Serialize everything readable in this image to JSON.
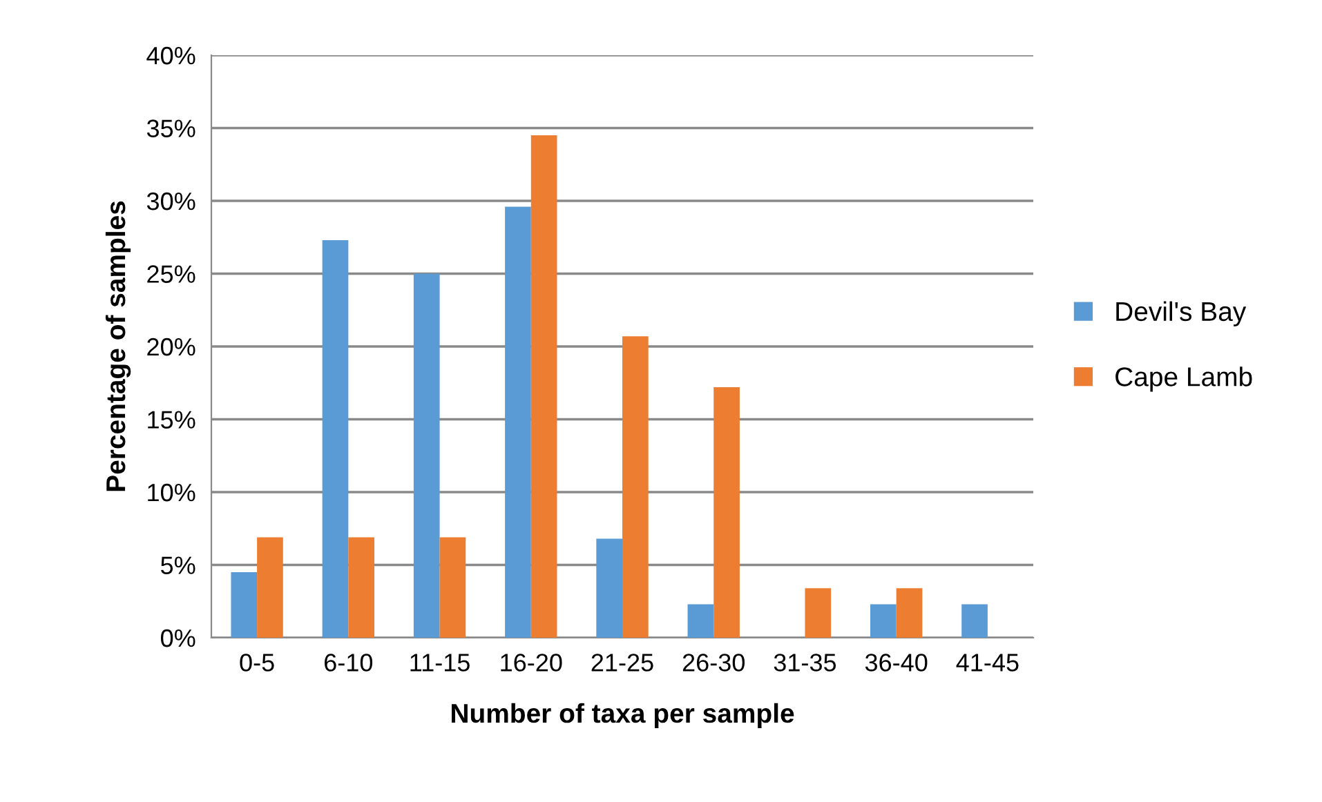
{
  "chart_data": {
    "type": "bar",
    "xlabel": "Number of taxa per sample",
    "ylabel": "Percentage of samples",
    "categories": [
      "0-5",
      "6-10",
      "11-15",
      "16-20",
      "21-25",
      "26-30",
      "31-35",
      "36-40",
      "41-45"
    ],
    "series": [
      {
        "name": "Devil's Bay",
        "color": "#5b9bd5",
        "values": [
          4.5,
          27.3,
          25.0,
          29.6,
          6.8,
          2.3,
          0,
          2.3,
          2.3
        ]
      },
      {
        "name": "Cape Lamb",
        "color": "#ed7d31",
        "values": [
          6.9,
          6.9,
          6.9,
          34.5,
          20.7,
          17.2,
          3.4,
          3.4,
          0
        ]
      }
    ],
    "ylim": [
      0,
      40
    ],
    "yticks": [
      {
        "value": 0,
        "label": "0%"
      },
      {
        "value": 5,
        "label": "5%"
      },
      {
        "value": 10,
        "label": "10%"
      },
      {
        "value": 15,
        "label": "15%"
      },
      {
        "value": 20,
        "label": "20%"
      },
      {
        "value": 25,
        "label": "25%"
      },
      {
        "value": 30,
        "label": "30%"
      },
      {
        "value": 35,
        "label": "35%"
      },
      {
        "value": 40,
        "label": "40%"
      }
    ],
    "grid": "y",
    "legend": "right"
  }
}
